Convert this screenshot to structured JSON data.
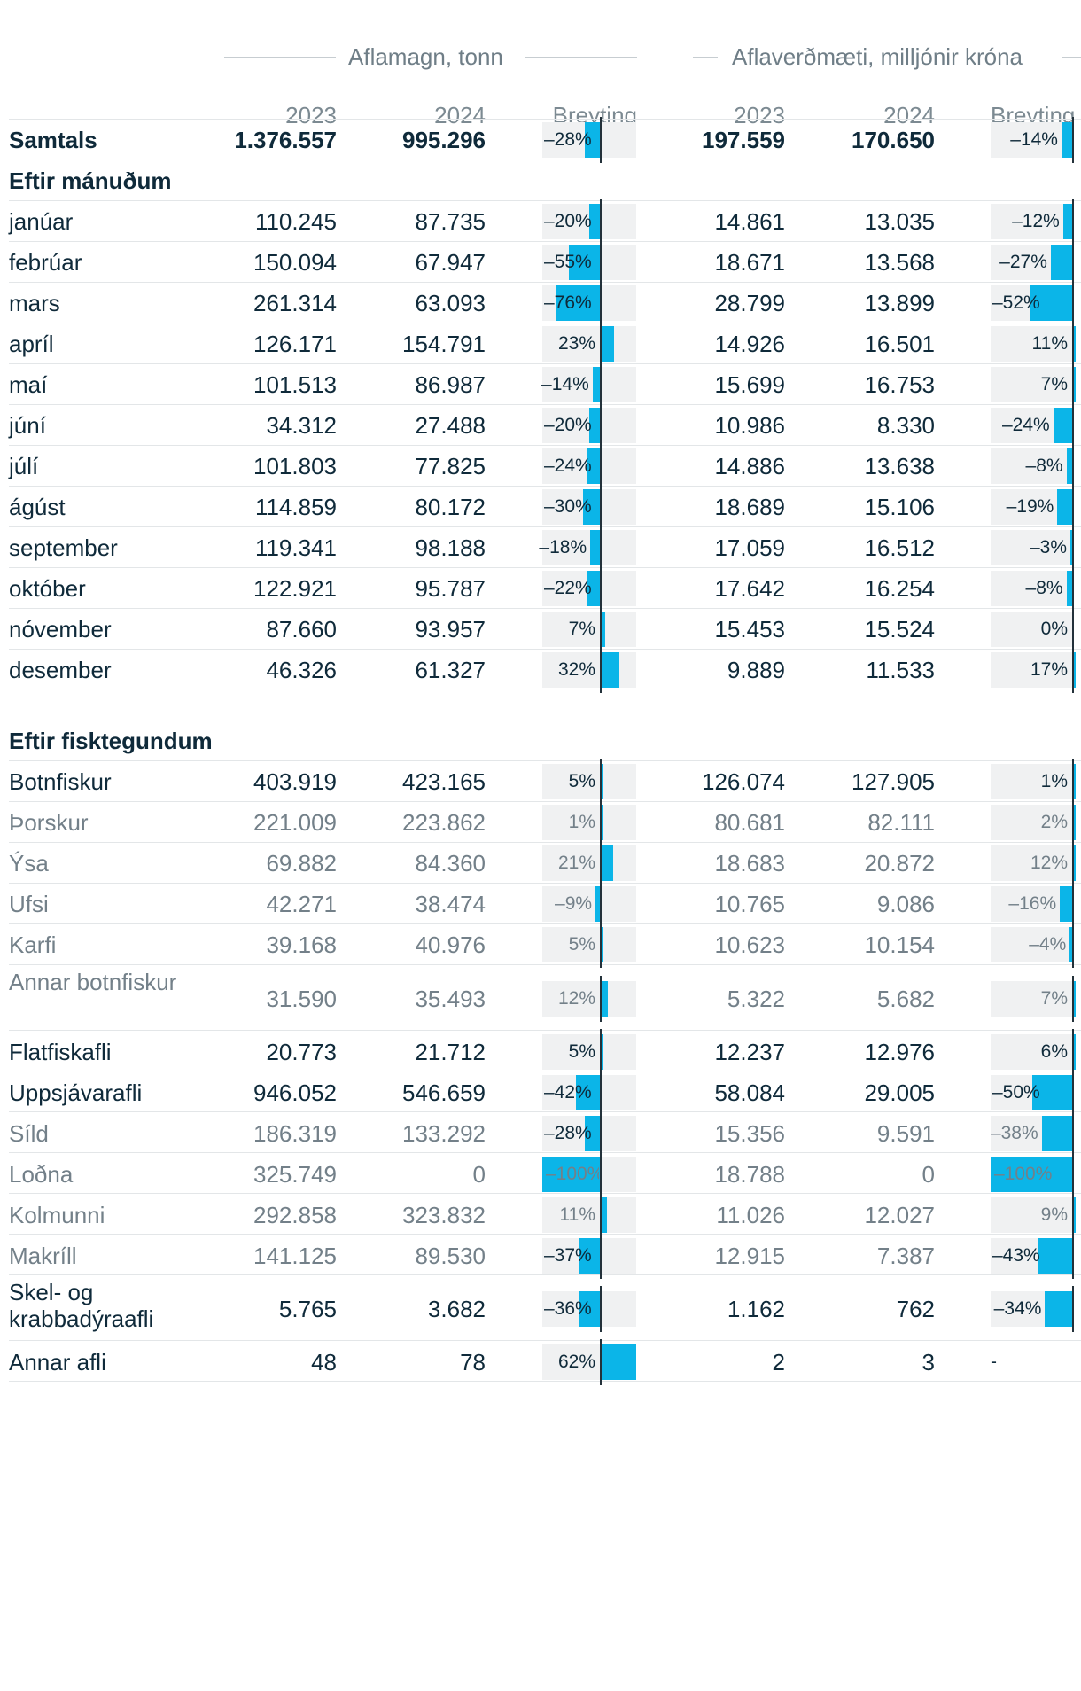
{
  "headers": {
    "group1": "Aflamagn, tonn",
    "group2": "Aflaverðmæti, milljónir króna",
    "y2023": "2023",
    "y2024": "2024",
    "change": "Breyting"
  },
  "sections": {
    "months": "Eftir mánuðum",
    "species": "Eftir fisktegundum"
  },
  "colors": {
    "bar": "#0bb5e8",
    "track": "#f0f1f2",
    "text": "#0f2a3a",
    "muted": "#738089"
  },
  "rows": [
    {
      "label": "Samtals",
      "t2023": "1.376.557",
      "t2024": "995.296",
      "tChange": "–28%",
      "tPct": -28,
      "v2023": "197.559",
      "v2024": "170.650",
      "vChange": "–14%",
      "vPct": -14,
      "style": "total"
    },
    {
      "label": "janúar",
      "t2023": "110.245",
      "t2024": "87.735",
      "tChange": "–20%",
      "tPct": -20,
      "v2023": "14.861",
      "v2024": "13.035",
      "vChange": "–12%",
      "vPct": -12,
      "style": "normal"
    },
    {
      "label": "febrúar",
      "t2023": "150.094",
      "t2024": "67.947",
      "tChange": "–55%",
      "tPct": -55,
      "v2023": "18.671",
      "v2024": "13.568",
      "vChange": "–27%",
      "vPct": -27,
      "style": "normal"
    },
    {
      "label": "mars",
      "t2023": "261.314",
      "t2024": "63.093",
      "tChange": "–76%",
      "tPct": -76,
      "v2023": "28.799",
      "v2024": "13.899",
      "vChange": "–52%",
      "vPct": -52,
      "style": "normal"
    },
    {
      "label": "apríl",
      "t2023": "126.171",
      "t2024": "154.791",
      "tChange": "23%",
      "tPct": 23,
      "v2023": "14.926",
      "v2024": "16.501",
      "vChange": "11%",
      "vPct": 11,
      "style": "normal"
    },
    {
      "label": "maí",
      "t2023": "101.513",
      "t2024": "86.987",
      "tChange": "–14%",
      "tPct": -14,
      "v2023": "15.699",
      "v2024": "16.753",
      "vChange": "7%",
      "vPct": 7,
      "style": "normal"
    },
    {
      "label": "júní",
      "t2023": "34.312",
      "t2024": "27.488",
      "tChange": "–20%",
      "tPct": -20,
      "v2023": "10.986",
      "v2024": "8.330",
      "vChange": "–24%",
      "vPct": -24,
      "style": "normal"
    },
    {
      "label": "júlí",
      "t2023": "101.803",
      "t2024": "77.825",
      "tChange": "–24%",
      "tPct": -24,
      "v2023": "14.886",
      "v2024": "13.638",
      "vChange": "–8%",
      "vPct": -8,
      "style": "normal"
    },
    {
      "label": "ágúst",
      "t2023": "114.859",
      "t2024": "80.172",
      "tChange": "–30%",
      "tPct": -30,
      "v2023": "18.689",
      "v2024": "15.106",
      "vChange": "–19%",
      "vPct": -19,
      "style": "normal"
    },
    {
      "label": "september",
      "t2023": "119.341",
      "t2024": "98.188",
      "tChange": "–18%",
      "tPct": -18,
      "v2023": "17.059",
      "v2024": "16.512",
      "vChange": "–3%",
      "vPct": -3,
      "style": "normal"
    },
    {
      "label": "október",
      "t2023": "122.921",
      "t2024": "95.787",
      "tChange": "–22%",
      "tPct": -22,
      "v2023": "17.642",
      "v2024": "16.254",
      "vChange": "–8%",
      "vPct": -8,
      "style": "normal"
    },
    {
      "label": "nóvember",
      "t2023": "87.660",
      "t2024": "93.957",
      "tChange": "7%",
      "tPct": 7,
      "v2023": "15.453",
      "v2024": "15.524",
      "vChange": "0%",
      "vPct": 0,
      "style": "normal"
    },
    {
      "label": "desember",
      "t2023": "46.326",
      "t2024": "61.327",
      "tChange": "32%",
      "tPct": 32,
      "v2023": "9.889",
      "v2024": "11.533",
      "vChange": "17%",
      "vPct": 17,
      "style": "normal"
    },
    {
      "label": "Botnfiskur",
      "t2023": "403.919",
      "t2024": "423.165",
      "tChange": "5%",
      "tPct": 5,
      "v2023": "126.074",
      "v2024": "127.905",
      "vChange": "1%",
      "vPct": 1,
      "style": "normal"
    },
    {
      "label": "Þorskur",
      "t2023": "221.009",
      "t2024": "223.862",
      "tChange": "1%",
      "tPct": 1,
      "v2023": "80.681",
      "v2024": "82.111",
      "vChange": "2%",
      "vPct": 2,
      "style": "dim"
    },
    {
      "label": "Ýsa",
      "t2023": "69.882",
      "t2024": "84.360",
      "tChange": "21%",
      "tPct": 21,
      "v2023": "18.683",
      "v2024": "20.872",
      "vChange": "12%",
      "vPct": 12,
      "style": "dim"
    },
    {
      "label": "Ufsi",
      "t2023": "42.271",
      "t2024": "38.474",
      "tChange": "–9%",
      "tPct": -9,
      "v2023": "10.765",
      "v2024": "9.086",
      "vChange": "–16%",
      "vPct": -16,
      "style": "dim"
    },
    {
      "label": "Karfi",
      "t2023": "39.168",
      "t2024": "40.976",
      "tChange": "5%",
      "tPct": 5,
      "v2023": "10.623",
      "v2024": "10.154",
      "vChange": "–4%",
      "vPct": -4,
      "style": "dim"
    },
    {
      "label": "Annar botnfiskur",
      "t2023": "31.590",
      "t2024": "35.493",
      "tChange": "12%",
      "tPct": 12,
      "v2023": "5.322",
      "v2024": "5.682",
      "vChange": "7%",
      "vPct": 7,
      "style": "dim"
    },
    {
      "label": "Flatfiskafli",
      "t2023": "20.773",
      "t2024": "21.712",
      "tChange": "5%",
      "tPct": 5,
      "v2023": "12.237",
      "v2024": "12.976",
      "vChange": "6%",
      "vPct": 6,
      "style": "normal"
    },
    {
      "label": "Uppsjávarafli",
      "t2023": "946.052",
      "t2024": "546.659",
      "tChange": "–42%",
      "tPct": -42,
      "v2023": "58.084",
      "v2024": "29.005",
      "vChange": "–50%",
      "vPct": -50,
      "style": "normal"
    },
    {
      "label": "Síld",
      "t2023": "186.319",
      "t2024": "133.292",
      "tChange": "–28%",
      "tPct": -28,
      "v2023": "15.356",
      "v2024": "9.591",
      "vChange": "–38%",
      "vPct": -38,
      "style": "dim"
    },
    {
      "label": "Loðna",
      "t2023": "325.749",
      "t2024": "0",
      "tChange": "–100%",
      "tPct": -100,
      "v2023": "18.788",
      "v2024": "0",
      "vChange": "–100%",
      "vPct": -100,
      "style": "dim"
    },
    {
      "label": "Kolmunni",
      "t2023": "292.858",
      "t2024": "323.832",
      "tChange": "11%",
      "tPct": 11,
      "v2023": "11.026",
      "v2024": "12.027",
      "vChange": "9%",
      "vPct": 9,
      "style": "dim"
    },
    {
      "label": "Makríll",
      "t2023": "141.125",
      "t2024": "89.530",
      "tChange": "–37%",
      "tPct": -37,
      "v2023": "12.915",
      "v2024": "7.387",
      "vChange": "–43%",
      "vPct": -43,
      "style": "dim"
    },
    {
      "label": "Skel- og krabbadýraafli",
      "t2023": "5.765",
      "t2024": "3.682",
      "tChange": "–36%",
      "tPct": -36,
      "v2023": "1.162",
      "v2024": "762",
      "vChange": "–34%",
      "vPct": -34,
      "style": "normal"
    },
    {
      "label": "Annar afli",
      "t2023": "48",
      "t2024": "78",
      "tChange": "62%",
      "tPct": 62,
      "v2023": "2",
      "v2024": "3",
      "vChange": "-",
      "vPct": null,
      "style": "normal"
    }
  ]
}
